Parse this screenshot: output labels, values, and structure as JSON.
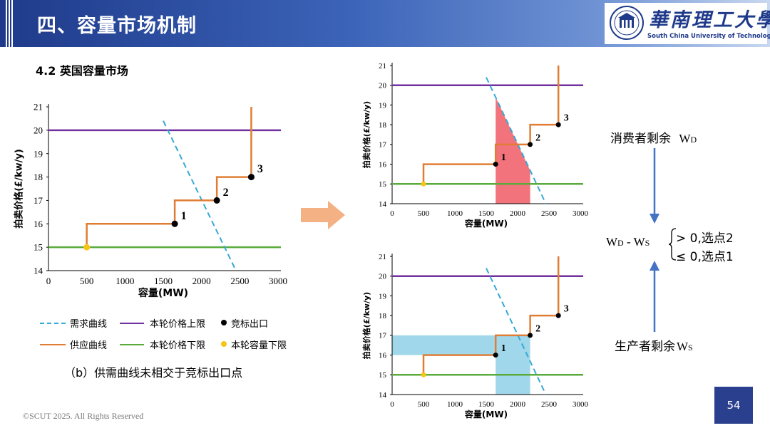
{
  "header": {
    "title": "四、容量市场机制"
  },
  "logo": {
    "cn_name": "華南理工大學",
    "en_name": "South China University of Technology"
  },
  "subtitle": "4.2 英国容量市场",
  "caption": "（b）供需曲线未相交于竞标出口点",
  "footer": "©SCUT 2025. All Rights Reserved",
  "page_number": "54",
  "legend": {
    "demand": "需求曲线",
    "supply": "供应曲线",
    "price_cap": "本轮价格上限",
    "price_floor": "本轮价格下限",
    "bid_exit": "竞标出口",
    "capacity_floor": "本轮容量下限"
  },
  "side": {
    "consumer_surplus": "消费者剩余",
    "consumer_symbol": "W",
    "consumer_sub": "D",
    "producer_surplus": "生产者剩余",
    "producer_symbol": "W",
    "producer_sub": "S",
    "diff_w1": "W",
    "diff_s1": "D",
    "diff_mid": " - ",
    "diff_w2": "W",
    "diff_s2": "S",
    "cond_gt": "> 0,选点2",
    "cond_le": "≤ 0,选点1"
  },
  "colors": {
    "demand": "#35a8d6",
    "supply": "#e07d35",
    "price_cap": "#7030a0",
    "price_floor": "#5aab3c",
    "bid_exit": "#000000",
    "capacity_floor": "#f5c518",
    "consumer_area": "#f05a64",
    "producer_area": "#8fd0e6",
    "arrow": "#4472c4"
  },
  "chart_data": [
    {
      "type": "line",
      "xlabel": "容量(MW)",
      "ylabel": "拍卖价格(£/kw/y)",
      "xlim": [
        0,
        3000
      ],
      "ylim": [
        14,
        21
      ],
      "xticks": [
        "0",
        "500",
        "1000",
        "1500",
        "2000",
        "2500",
        "3000"
      ],
      "yticks": [
        "14",
        "15",
        "16",
        "17",
        "18",
        "19",
        "20",
        "21"
      ],
      "price_cap": 20,
      "price_floor": 15,
      "demand": [
        [
          1500,
          20.4
        ],
        [
          2450,
          14
        ]
      ],
      "supply": [
        [
          500,
          15
        ],
        [
          500,
          16
        ],
        [
          1650,
          16
        ],
        [
          1650,
          17
        ],
        [
          2200,
          17
        ],
        [
          2200,
          18
        ],
        [
          2650,
          18
        ],
        [
          2650,
          21
        ]
      ],
      "bid_exit_points": [
        {
          "label": "1",
          "x": 1650,
          "y": 16
        },
        {
          "label": "2",
          "x": 2200,
          "y": 17
        },
        {
          "label": "3",
          "x": 2650,
          "y": 18
        }
      ],
      "capacity_floor_point": {
        "x": 500,
        "y": 15
      }
    },
    {
      "type": "line",
      "xlabel": "容量(MW)",
      "ylabel": "拍卖价格(£/kw/y)",
      "xlim": [
        0,
        3000
      ],
      "ylim": [
        14,
        21
      ],
      "xticks": [
        "0",
        "500",
        "1000",
        "1500",
        "2000",
        "2500",
        "3000"
      ],
      "yticks": [
        "14",
        "15",
        "16",
        "17",
        "18",
        "19",
        "20",
        "21"
      ],
      "price_cap": 20,
      "price_floor": 15,
      "demand": [
        [
          1500,
          20.4
        ],
        [
          2450,
          14
        ]
      ],
      "supply": [
        [
          500,
          15
        ],
        [
          500,
          16
        ],
        [
          1650,
          16
        ],
        [
          1650,
          17
        ],
        [
          2200,
          17
        ],
        [
          2200,
          18
        ],
        [
          2650,
          18
        ],
        [
          2650,
          21
        ]
      ],
      "bid_exit_points": [
        {
          "label": "1",
          "x": 1650,
          "y": 16
        },
        {
          "label": "2",
          "x": 2200,
          "y": 17
        },
        {
          "label": "3",
          "x": 2650,
          "y": 18
        }
      ],
      "capacity_floor_point": {
        "x": 500,
        "y": 15
      },
      "shaded_area": "consumer_surplus"
    },
    {
      "type": "line",
      "xlabel": "容量(MW)",
      "ylabel": "拍卖价格(£/kw/y)",
      "xlim": [
        0,
        3000
      ],
      "ylim": [
        14,
        21
      ],
      "xticks": [
        "0",
        "500",
        "1000",
        "1500",
        "2000",
        "2500",
        "3000"
      ],
      "yticks": [
        "14",
        "15",
        "16",
        "17",
        "18",
        "19",
        "20",
        "21"
      ],
      "price_cap": 20,
      "price_floor": 15,
      "demand": [
        [
          1500,
          20.4
        ],
        [
          2450,
          14
        ]
      ],
      "supply": [
        [
          500,
          15
        ],
        [
          500,
          16
        ],
        [
          1650,
          16
        ],
        [
          1650,
          17
        ],
        [
          2200,
          17
        ],
        [
          2200,
          18
        ],
        [
          2650,
          18
        ],
        [
          2650,
          21
        ]
      ],
      "bid_exit_points": [
        {
          "label": "1",
          "x": 1650,
          "y": 16
        },
        {
          "label": "2",
          "x": 2200,
          "y": 17
        },
        {
          "label": "3",
          "x": 2650,
          "y": 18
        }
      ],
      "capacity_floor_point": {
        "x": 500,
        "y": 15
      },
      "shaded_area": "producer_surplus"
    }
  ]
}
